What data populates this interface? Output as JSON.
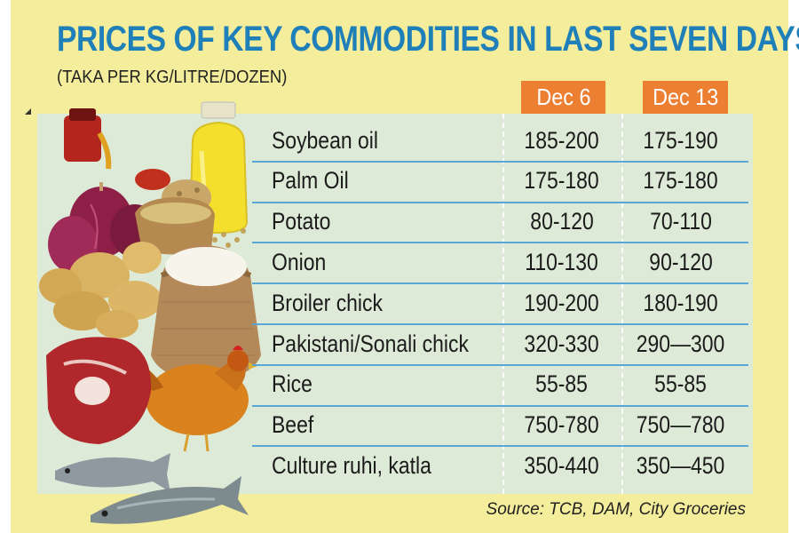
{
  "title": "PRICES OF KEY COMMODITIES IN LAST SEVEN DAYS",
  "subtitle": "(TAKA PER KG/LITRE/DOZEN)",
  "source": "Source: TCB, DAM, City Groceries",
  "colors": {
    "background": "#f4ed9b",
    "table_panel": "#ddead7",
    "title": "#1f7fb8",
    "header_badge": "#ec7f31",
    "row_rule": "#58a7d6"
  },
  "chart_data": {
    "type": "table",
    "columns": [
      "Dec 6",
      "Dec 13"
    ],
    "rows": [
      {
        "item": "Soybean oil",
        "values": [
          "185-200",
          "175-190"
        ]
      },
      {
        "item": "Palm Oil",
        "values": [
          "175-180",
          "175-180"
        ]
      },
      {
        "item": "Potato",
        "values": [
          "80-120",
          "70-110"
        ]
      },
      {
        "item": "Onion",
        "values": [
          "110-130",
          "90-120"
        ]
      },
      {
        "item": "Broiler chick",
        "values": [
          "190-200",
          "180-190"
        ]
      },
      {
        "item": "Pakistani/Sonali chick",
        "values": [
          "320-330",
          "290—300"
        ]
      },
      {
        "item": "Rice",
        "values": [
          "55-85",
          "55-85"
        ]
      },
      {
        "item": "Beef",
        "values": [
          "750-780",
          "750—780"
        ]
      },
      {
        "item": "Culture ruhi, katla",
        "values": [
          "350-440",
          "350—450"
        ]
      }
    ]
  }
}
